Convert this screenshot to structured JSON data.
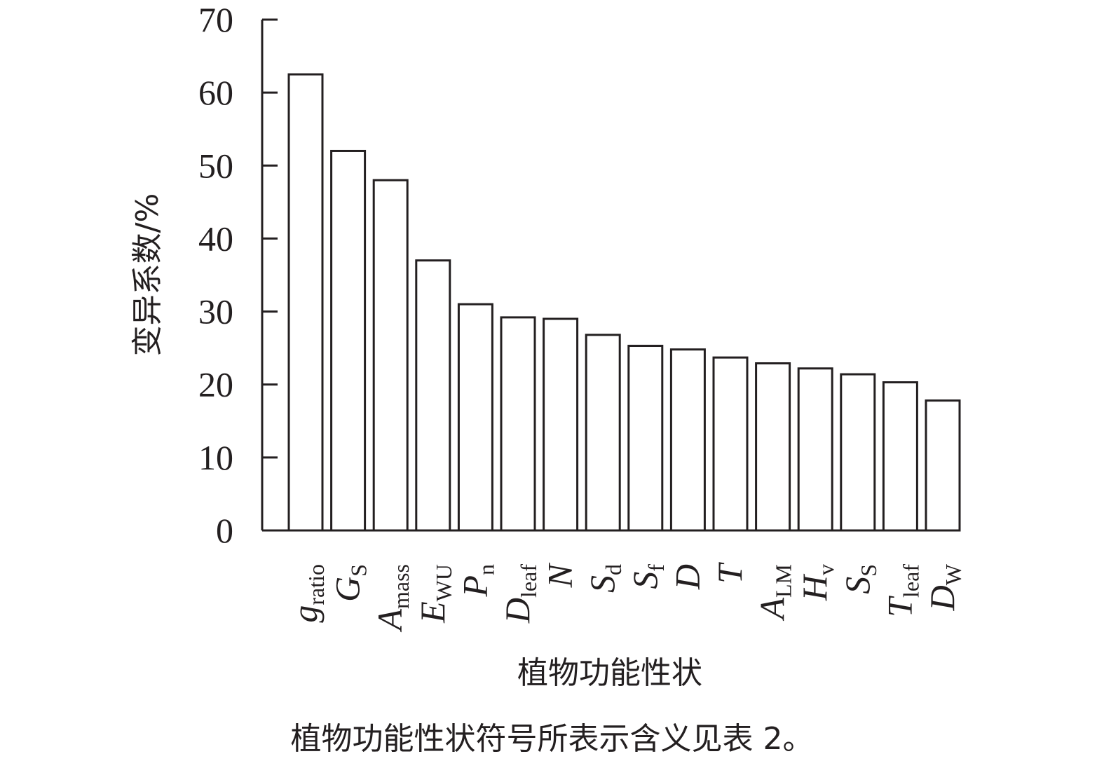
{
  "chart_data": {
    "type": "bar",
    "ylabel": "变异系数/%",
    "xlabel": "植物功能性状",
    "ylim": [
      0,
      70
    ],
    "yticks": [
      "0",
      "10",
      "20",
      "30",
      "40",
      "50",
      "60",
      "70"
    ],
    "categories": [
      {
        "main": "g",
        "sub": "ratio"
      },
      {
        "main": "G",
        "sub": "S"
      },
      {
        "main": "A",
        "sub": "mass"
      },
      {
        "main": "E",
        "sub": "WU"
      },
      {
        "main": "P",
        "sub": "n"
      },
      {
        "main": "D",
        "sub": "leaf"
      },
      {
        "main": "N",
        "sub": ""
      },
      {
        "main": "S",
        "sub": "d"
      },
      {
        "main": "S",
        "sub": "f"
      },
      {
        "main": "D",
        "sub": ""
      },
      {
        "main": "T",
        "sub": ""
      },
      {
        "main": "A",
        "sub": "LM"
      },
      {
        "main": "H",
        "sub": "v"
      },
      {
        "main": "S",
        "sub": "S"
      },
      {
        "main": "T",
        "sub": "leaf"
      },
      {
        "main": "D",
        "sub": "W"
      }
    ],
    "values": [
      62.5,
      52,
      48,
      37,
      31,
      29.2,
      29,
      26.8,
      25.3,
      24.8,
      23.7,
      22.9,
      22.2,
      21.4,
      20.3,
      17.8
    ],
    "grid": false,
    "legend": "none",
    "colors": {
      "bar_fill": "#ffffff",
      "bar_stroke": "#231f20",
      "text": "#231f20"
    }
  },
  "caption": "植物功能性状符号所表示含义见表 2。"
}
